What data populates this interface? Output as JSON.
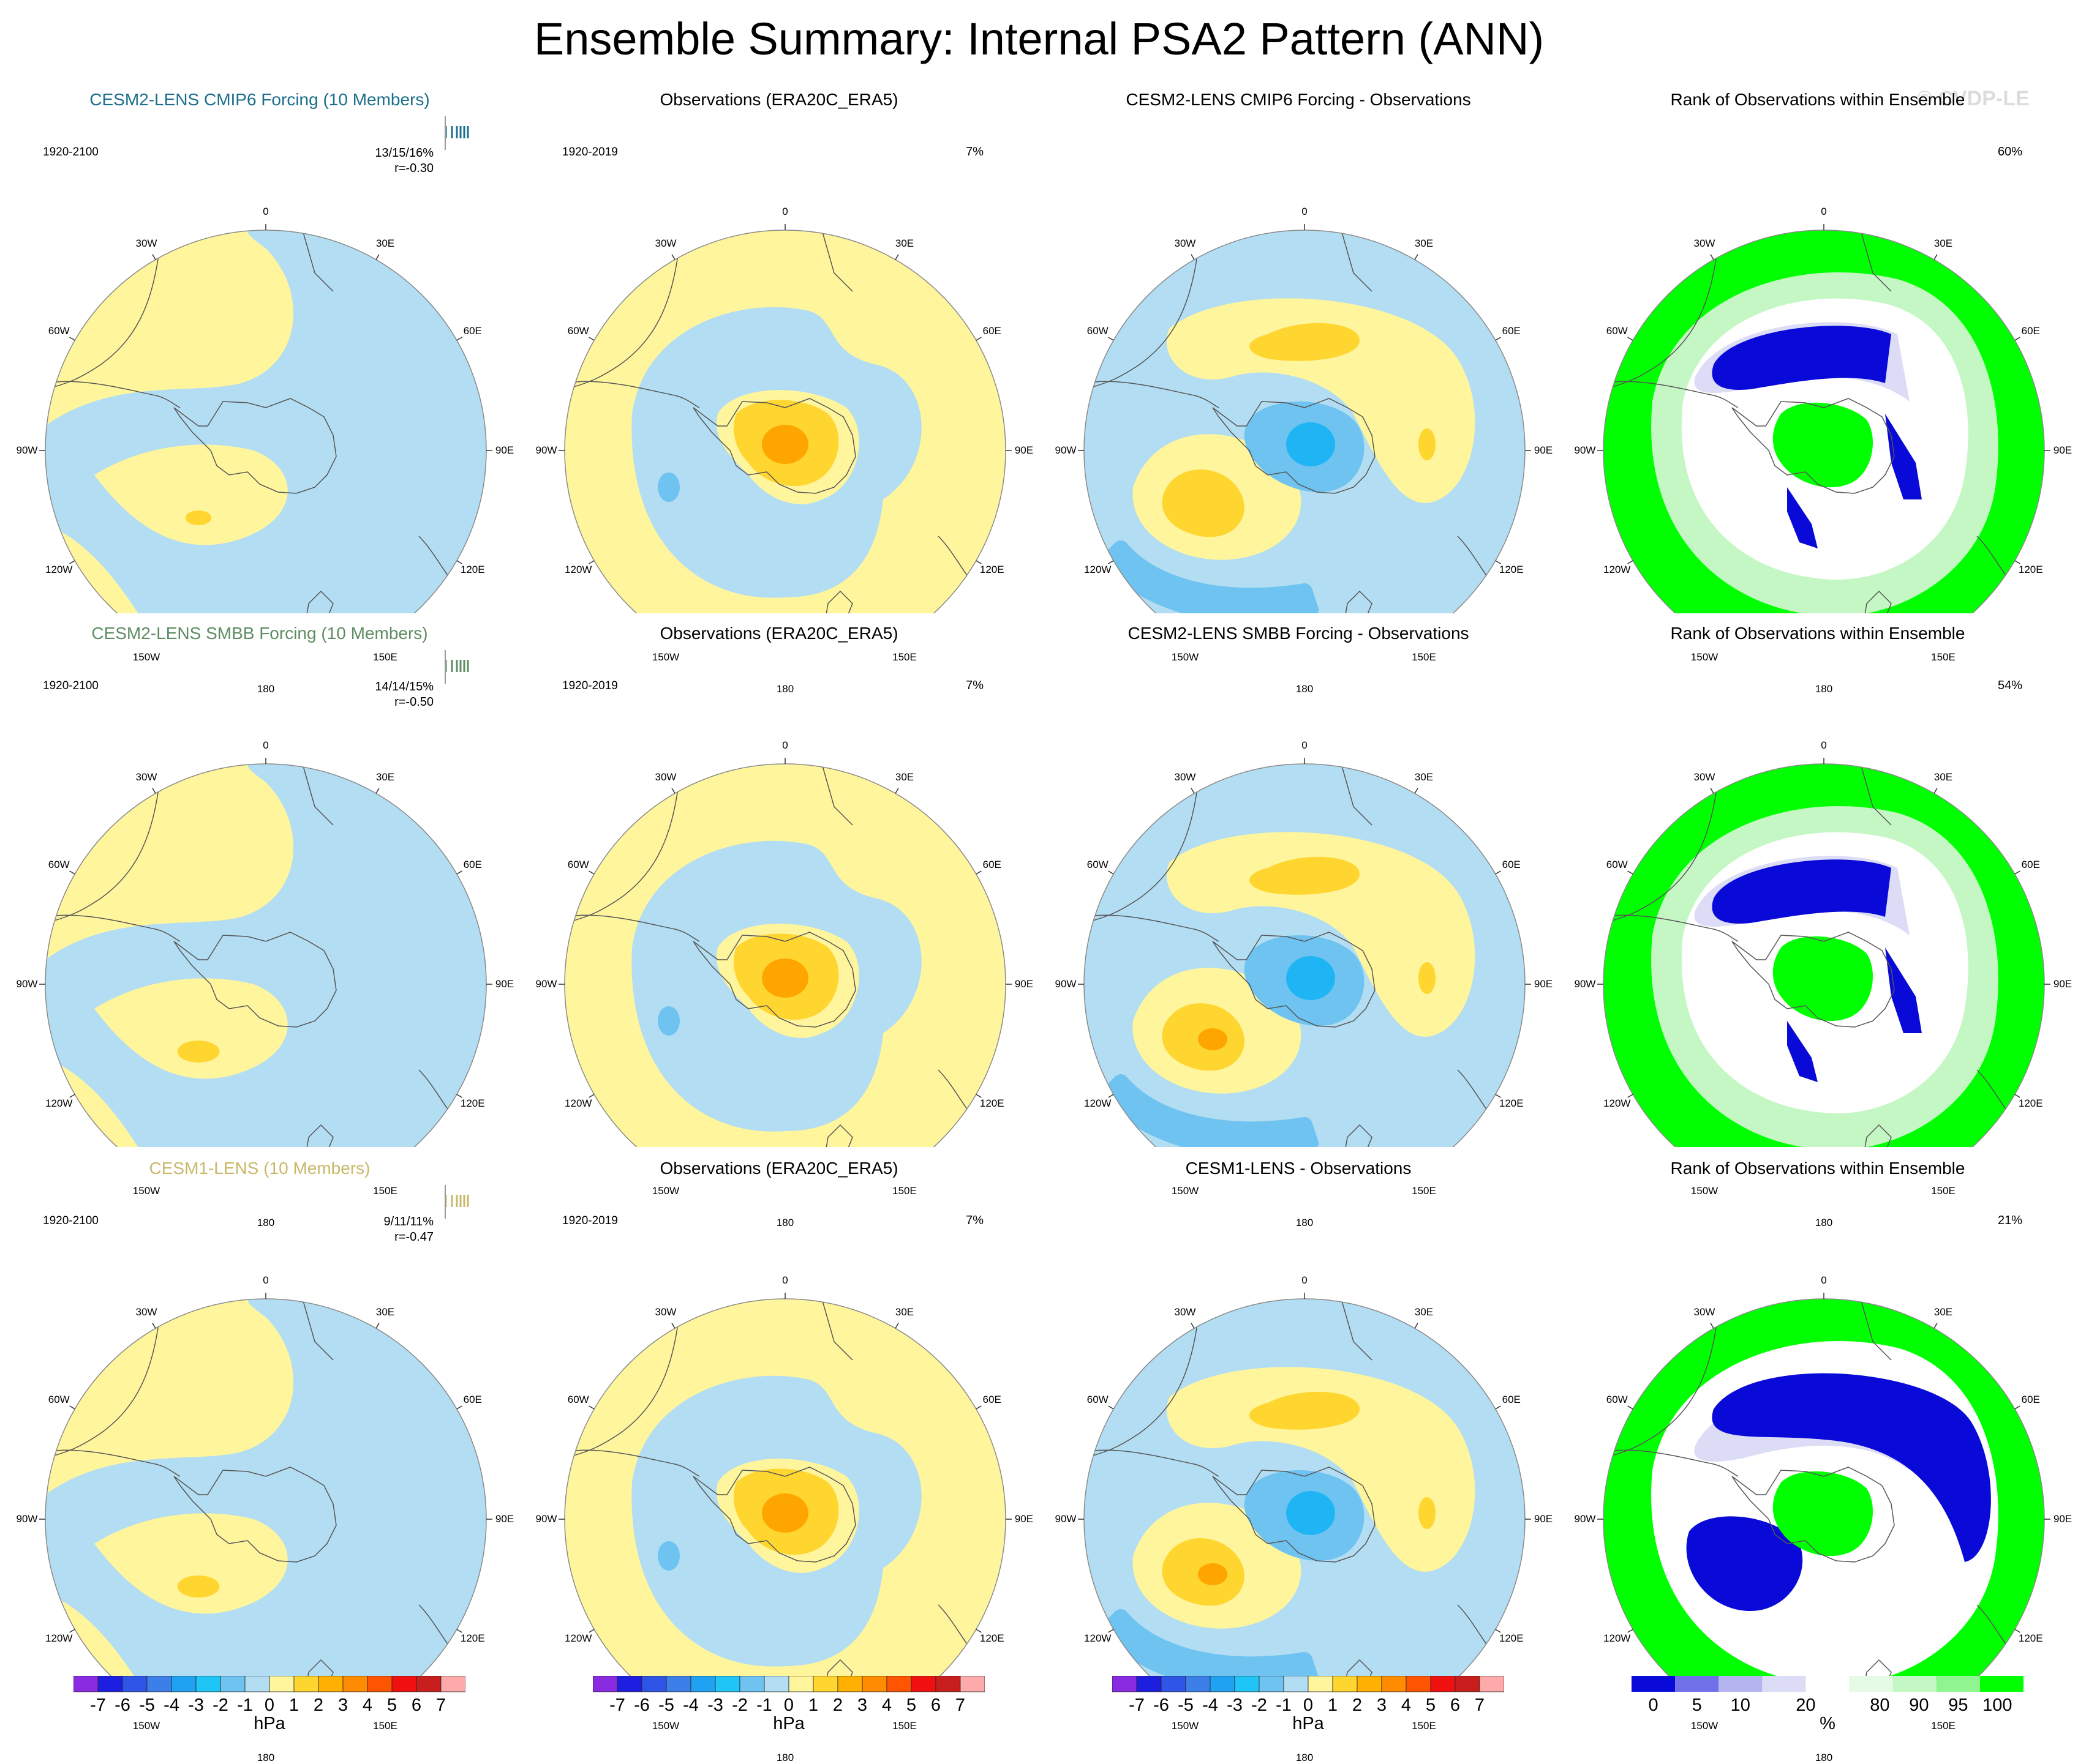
{
  "title": "Ensemble Summary: Internal PSA2 Pattern (ANN)",
  "watermark": "© CVDP-LE",
  "longitude_labels": [
    "0",
    "30E",
    "60E",
    "90E",
    "120E",
    "150E",
    "180",
    "150W",
    "120W",
    "90W",
    "60W",
    "30W"
  ],
  "colors": {
    "light_yellow": "#FFF59D",
    "yellow": "#FFD530",
    "orange": "#FFA500",
    "light_blue": "#B3DDF2",
    "blue": "#6EC3F0",
    "cyan": "#1FB5F5",
    "rank_green": "#00FF00",
    "rank_light_green": "#C4F7C4",
    "rank_lavender": "#DCDCF7",
    "rank_blue": "#0A0AD8",
    "coast": "#555555"
  },
  "rows": [
    {
      "model_title": "CESM2-LENS CMIP6 Forcing (10 Members)",
      "title_color": "#1B6E8C",
      "model_period": "1920-2100",
      "model_stats": [
        "13/15/16%",
        "r=-0.30"
      ],
      "obs_title": "Observations (ERA20C_ERA5)",
      "obs_period": "1920-2019",
      "obs_pct": "7%",
      "diff_title": "CESM2-LENS CMIP6 Forcing - Observations",
      "rank_title": "Rank of Observations within Ensemble",
      "rank_pct": "60%"
    },
    {
      "model_title": "CESM2-LENS SMBB Forcing (10 Members)",
      "title_color": "#5E8C62",
      "model_period": "1920-2100",
      "model_stats": [
        "14/14/15%",
        "r=-0.50"
      ],
      "obs_title": "Observations (ERA20C_ERA5)",
      "obs_period": "1920-2019",
      "obs_pct": "7%",
      "diff_title": "CESM2-LENS SMBB Forcing - Observations",
      "rank_title": "Rank of Observations within Ensemble",
      "rank_pct": "54%"
    },
    {
      "model_title": "CESM1-LENS (10 Members)",
      "title_color": "#C9B86A",
      "model_period": "1920-2100",
      "model_stats": [
        "9/11/11%",
        "r=-0.47"
      ],
      "obs_title": "Observations (ERA20C_ERA5)",
      "obs_period": "1920-2019",
      "obs_pct": "7%",
      "diff_title": "CESM1-LENS - Observations",
      "rank_title": "Rank of Observations within Ensemble",
      "rank_pct": "21%"
    }
  ],
  "hpa_colorbar": {
    "unit": "hPa",
    "ticks": [
      "-7",
      "-6",
      "-5",
      "-4",
      "-3",
      "-2",
      "-1",
      "0",
      "1",
      "2",
      "3",
      "4",
      "5",
      "6",
      "7"
    ],
    "colors": [
      "#8A2BE2",
      "#1E1EE0",
      "#2E55E6",
      "#3D7FE8",
      "#1FA2F2",
      "#1FC5F5",
      "#6EC3F0",
      "#B3DDF2",
      "#FFF59D",
      "#FFD530",
      "#FFB000",
      "#FF8C00",
      "#FF5500",
      "#F01010",
      "#C81E1E",
      "#FFAAAA"
    ]
  },
  "rank_colorbar": {
    "unit": "%",
    "ticks": [
      "0",
      "5",
      "10",
      "20",
      "80",
      "90",
      "95",
      "100"
    ],
    "colors": [
      "#0A0AD8",
      "#7070E8",
      "#B4B4F0",
      "#DCDCF7",
      "#FFFFFF",
      "#E6FBE6",
      "#C4F7C4",
      "#90F590",
      "#00FF00"
    ]
  },
  "chart_data": [
    {
      "type": "heatmap",
      "description_field": "panel",
      "panel": "row1-col1 model ensemble mean, polar stereographic Southern Hemisphere",
      "colorbar": "hpa_colorbar"
    }
  ]
}
